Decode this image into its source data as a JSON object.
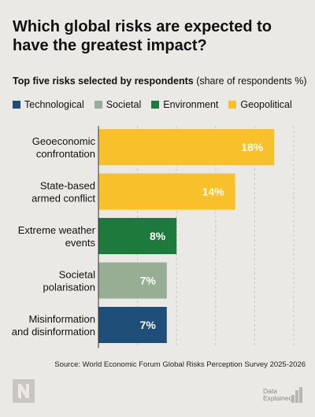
{
  "title": "Which global risks are expected to have the greatest impact?",
  "subtitle_bold": "Top five risks selected by respondents",
  "subtitle_rest": " (share of respondents %)",
  "legend": [
    {
      "label": "Technological",
      "color": "#1f4e79"
    },
    {
      "label": "Societal",
      "color": "#98ae94"
    },
    {
      "label": "Environment",
      "color": "#1e7a3c"
    },
    {
      "label": "Geopolitical",
      "color": "#f8c02a"
    }
  ],
  "chart_data": {
    "type": "bar",
    "orientation": "horizontal",
    "xlim": [
      0,
      20
    ],
    "grid": true,
    "bars": [
      {
        "line1": "Geoeconomic",
        "line2": "confrontation",
        "value": 18,
        "value_label": "18%",
        "category": "Geopolitical",
        "color": "#f8c02a"
      },
      {
        "line1": "State-based",
        "line2": "armed conflict",
        "value": 14,
        "value_label": "14%",
        "category": "Geopolitical",
        "color": "#f8c02a"
      },
      {
        "line1": "Extreme weather",
        "line2": "events",
        "value": 8,
        "value_label": "8%",
        "category": "Environment",
        "color": "#1e7a3c"
      },
      {
        "line1": "Societal",
        "line2": "polarisation",
        "value": 7,
        "value_label": "7%",
        "category": "Societal",
        "color": "#98ae94"
      },
      {
        "line1": "Misinformation",
        "line2": "and disinformation",
        "value": 7,
        "value_label": "7%",
        "category": "Technological",
        "color": "#1f4e79"
      }
    ]
  },
  "source": "Source: World Economic Forum Global Risks Perception Survey 2025-2026",
  "brand": {
    "line1": "Data",
    "line2": "Explained"
  }
}
